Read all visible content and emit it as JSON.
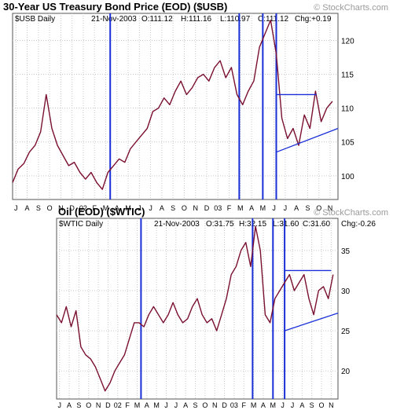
{
  "colors": {
    "price": "#7a1030",
    "trend": "#1a2fd6",
    "vline": "#1a2fd6",
    "grid": "#c8c8c8",
    "frame": "#555555"
  },
  "chart_data": [
    {
      "type": "line",
      "title": "30-Year US Treasury Bond Price (EOD) ($USB)",
      "watermark": "© StockCharts.com",
      "series_label": "$USB Daily",
      "quote": {
        "date": "21-Nov-2003",
        "open": "O:111.12",
        "high": "H:111.16",
        "low": "L:110.97",
        "close": "C:111.12",
        "change": "Chg:+0.19"
      },
      "ylim": [
        96.5,
        124
      ],
      "yticks": [
        100,
        105,
        110,
        115,
        120
      ],
      "x_tick_labels": [
        "J",
        "A",
        "S",
        "O",
        "N",
        "D",
        "02",
        "F",
        "M",
        "A",
        "M",
        "J",
        "J",
        "A",
        "S",
        "O",
        "N",
        "D",
        "03",
        "F",
        "M",
        "A",
        "M",
        "J",
        "J",
        "A",
        "S",
        "O",
        "N"
      ],
      "x_range": [
        0,
        29
      ],
      "x": [
        0,
        0.5,
        1,
        1.5,
        2,
        2.5,
        3,
        3.5,
        4,
        4.5,
        5,
        5.5,
        6,
        6.5,
        7,
        7.5,
        8,
        8.5,
        9,
        9.5,
        10,
        10.5,
        11,
        11.5,
        12,
        12.5,
        13,
        13.5,
        14,
        14.5,
        15,
        15.5,
        16,
        16.5,
        17,
        17.5,
        18,
        18.5,
        19,
        19.5,
        20,
        20.5,
        21,
        21.5,
        22,
        22.5,
        23,
        23.5,
        24,
        24.5,
        25,
        25.5,
        26,
        26.5,
        27,
        27.5,
        28,
        28.5
      ],
      "values": [
        99,
        101,
        101.8,
        103.5,
        104.5,
        106.5,
        112,
        107,
        104.5,
        103,
        101.5,
        102,
        100.5,
        99.5,
        100.5,
        99,
        98,
        100.5,
        101.5,
        102.5,
        102,
        104,
        105,
        106,
        107,
        109.5,
        110,
        111.5,
        110.5,
        112.5,
        114,
        112,
        113,
        114.5,
        115,
        114,
        116,
        117,
        114.5,
        116,
        112,
        110.5,
        112.5,
        114,
        119,
        121,
        123,
        118,
        108.5,
        105.5,
        107,
        104.5,
        109,
        107,
        112.5,
        108,
        110,
        111
      ],
      "trendlines": [
        {
          "points": [
            [
              23.5,
              112
            ],
            [
              27.1,
              112
            ]
          ]
        },
        {
          "points": [
            [
              23.5,
              103.5
            ],
            [
              29,
              107
            ]
          ]
        }
      ],
      "vertical_markers_x": [
        8.7,
        20.2,
        22.3,
        23.5
      ]
    },
    {
      "type": "line",
      "title": "Oil (EOD) ($WTIC)",
      "watermark": "© StockCharts.com",
      "series_label": "$WTIC Daily",
      "quote": {
        "date": "21-Nov-2003",
        "open": "O:31.75",
        "high": "H:32.15",
        "low": "L:31.60",
        "close": "C:31.60",
        "change": "Chg:-0.26"
      },
      "ylim": [
        16.5,
        39
      ],
      "yticks": [
        20,
        25,
        30,
        35
      ],
      "x_tick_labels": [
        "J",
        "A",
        "S",
        "O",
        "N",
        "D",
        "02",
        "F",
        "M",
        "A",
        "M",
        "J",
        "J",
        "A",
        "S",
        "O",
        "N",
        "D",
        "03",
        "F",
        "M",
        "A",
        "M",
        "J",
        "J",
        "A",
        "S",
        "O",
        "N"
      ],
      "x_range": [
        0,
        29
      ],
      "x": [
        0,
        0.5,
        1,
        1.5,
        2,
        2.5,
        3,
        3.5,
        4,
        4.5,
        5,
        5.5,
        6,
        6.5,
        7,
        7.5,
        8,
        8.5,
        9,
        9.5,
        10,
        10.5,
        11,
        11.5,
        12,
        12.5,
        13,
        13.5,
        14,
        14.5,
        15,
        15.5,
        16,
        16.5,
        17,
        17.5,
        18,
        18.5,
        19,
        19.5,
        20,
        20.5,
        21,
        21.5,
        22,
        22.5,
        23,
        23.5,
        24,
        24.5,
        25,
        25.5,
        26,
        26.5,
        27,
        27.5,
        28,
        28.5
      ],
      "values": [
        27,
        26,
        28,
        25.5,
        27.5,
        23,
        22,
        21.5,
        20.5,
        19,
        17.5,
        18.5,
        20,
        21,
        22,
        24,
        26,
        26,
        25.5,
        27,
        28,
        27,
        26,
        27,
        28.5,
        27,
        26,
        26.5,
        28,
        29,
        27,
        26,
        26.5,
        25,
        27,
        29,
        32,
        33,
        35,
        36,
        33,
        38,
        35,
        27,
        26,
        29,
        30,
        31,
        32,
        30,
        31,
        32,
        29,
        27,
        30,
        30.5,
        29,
        32
      ],
      "trendlines": [
        {
          "points": [
            [
              23.5,
              32.5
            ],
            [
              28.3,
              32.5
            ]
          ]
        },
        {
          "points": [
            [
              23.5,
              25
            ],
            [
              29,
              27.2
            ]
          ]
        }
      ],
      "vertical_markers_x": [
        8.7,
        20.2,
        22.3,
        23.5
      ]
    }
  ]
}
